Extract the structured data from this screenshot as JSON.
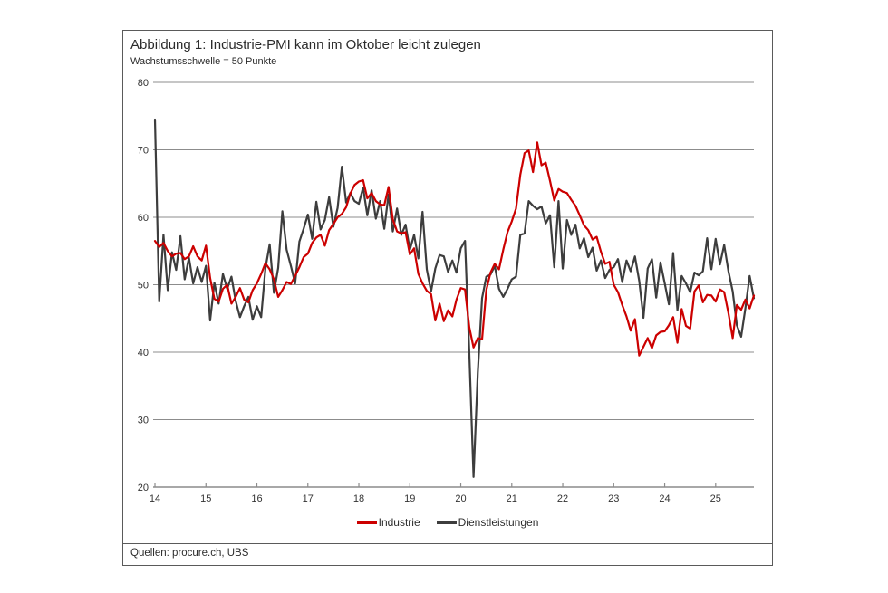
{
  "figure": {
    "title": "Abbildung 1: Industrie-PMI kann im Oktober leicht zulegen",
    "subtitle": "Wachstumsschwelle = 50 Punkte",
    "source": "Quellen: procure.ch, UBS"
  },
  "colors": {
    "industrie": "#cc0000",
    "dienstleistungen": "#3d3d3d",
    "grid": "#8c8c8c",
    "text": "#333333"
  },
  "chart_data": {
    "type": "line",
    "title": "Abbildung 1: Industrie-PMI kann im Oktober leicht zulegen",
    "subtitle": "Wachstumsschwelle = 50 Punkte",
    "x_unit": "month",
    "x_start": "2014-01",
    "x_end": "2025-10",
    "x_tick_labels": [
      "14",
      "15",
      "16",
      "17",
      "18",
      "19",
      "20",
      "21",
      "22",
      "23",
      "24",
      "25"
    ],
    "y_ticks": [
      20,
      30,
      40,
      50,
      60,
      70,
      80
    ],
    "ylim": [
      20,
      80
    ],
    "grid": true,
    "legend_position": "bottom",
    "series": [
      {
        "name": "Industrie",
        "color": "#cc0000",
        "values": [
          56.5,
          55.6,
          56.2,
          55.0,
          54.2,
          54.6,
          54.7,
          53.8,
          54.2,
          55.7,
          54.2,
          53.6,
          55.8,
          51.0,
          47.9,
          47.5,
          49.4,
          50.0,
          47.2,
          48.2,
          49.5,
          47.8,
          47.4,
          49.2,
          50.2,
          51.6,
          53.2,
          52.3,
          50.8,
          48.2,
          49.2,
          50.4,
          50.1,
          51.3,
          52.6,
          54.1,
          54.6,
          56.2,
          57.0,
          57.4,
          55.8,
          58.1,
          59.0,
          60.0,
          60.5,
          61.5,
          63.5,
          64.8,
          65.3,
          65.5,
          62.8,
          63.6,
          62.4,
          61.9,
          61.8,
          64.5,
          59.7,
          57.9,
          57.6,
          57.8,
          54.5,
          55.4,
          51.6,
          50.2,
          49.1,
          48.6,
          44.7,
          47.2,
          44.6,
          46.2,
          45.3,
          47.8,
          49.5,
          49.3,
          43.7,
          40.7,
          42.1,
          41.9,
          49.2,
          51.8,
          53.1,
          52.3,
          55.2,
          57.8,
          59.4,
          61.3,
          66.3,
          69.5,
          69.9,
          66.7,
          71.1,
          67.7,
          68.1,
          65.4,
          62.5,
          64.2,
          63.8,
          63.6,
          62.6,
          61.7,
          60.3,
          58.8,
          58.1,
          56.7,
          57.1,
          54.9,
          53.1,
          53.4,
          50.0,
          48.9,
          47.0,
          45.3,
          43.2,
          44.9,
          39.5,
          40.8,
          42.1,
          40.6,
          42.5,
          43.0,
          43.1,
          44.0,
          45.2,
          41.4,
          46.4,
          43.9,
          43.5,
          49.0,
          49.9,
          47.4,
          48.5,
          48.4,
          47.5,
          49.3,
          48.9,
          45.8,
          42.1,
          47.0,
          46.3,
          47.8,
          46.5,
          48.4
        ]
      },
      {
        "name": "Dienstleistungen",
        "color": "#3d3d3d",
        "values": [
          74.5,
          47.5,
          57.4,
          49.2,
          54.8,
          52.2,
          57.2,
          50.8,
          54.0,
          50.2,
          52.6,
          50.4,
          52.8,
          44.7,
          50.3,
          47.2,
          51.6,
          49.4,
          51.2,
          47.6,
          45.2,
          46.8,
          48.2,
          44.8,
          46.8,
          45.2,
          52.4,
          56.0,
          48.8,
          52.5,
          60.9,
          55.2,
          52.8,
          50.2,
          56.4,
          58.3,
          60.4,
          56.8,
          62.3,
          58.2,
          59.6,
          63.0,
          58.6,
          61.4,
          67.5,
          62.2,
          63.6,
          62.4,
          62.0,
          64.4,
          60.3,
          64.0,
          59.8,
          62.4,
          58.3,
          63.4,
          57.9,
          61.3,
          57.4,
          58.9,
          55.2,
          57.4,
          53.9,
          60.8,
          52.3,
          49.0,
          52.4,
          54.4,
          54.2,
          51.9,
          53.6,
          51.8,
          55.4,
          56.5,
          40.0,
          21.5,
          37.0,
          48.0,
          51.2,
          51.5,
          52.8,
          49.4,
          48.2,
          49.4,
          50.8,
          51.2,
          57.4,
          57.6,
          62.4,
          61.7,
          61.2,
          61.6,
          59.1,
          60.3,
          52.6,
          62.4,
          52.4,
          59.6,
          57.4,
          58.9,
          55.4,
          56.9,
          54.1,
          55.5,
          52.1,
          53.6,
          51.0,
          52.2,
          52.6,
          53.8,
          50.4,
          53.6,
          52.0,
          54.2,
          50.6,
          45.1,
          52.4,
          53.8,
          48.1,
          53.3,
          50.2,
          47.1,
          54.7,
          46.2,
          51.3,
          50.2,
          48.9,
          51.8,
          51.4,
          52.0,
          56.9,
          52.3,
          56.8,
          53.0,
          55.9,
          52.0,
          49.0,
          44.0,
          42.3,
          46.5,
          51.3,
          48.0
        ]
      }
    ]
  },
  "legend": [
    {
      "label": "Industrie",
      "color": "#cc0000"
    },
    {
      "label": "Dienstleistungen",
      "color": "#3d3d3d"
    }
  ]
}
